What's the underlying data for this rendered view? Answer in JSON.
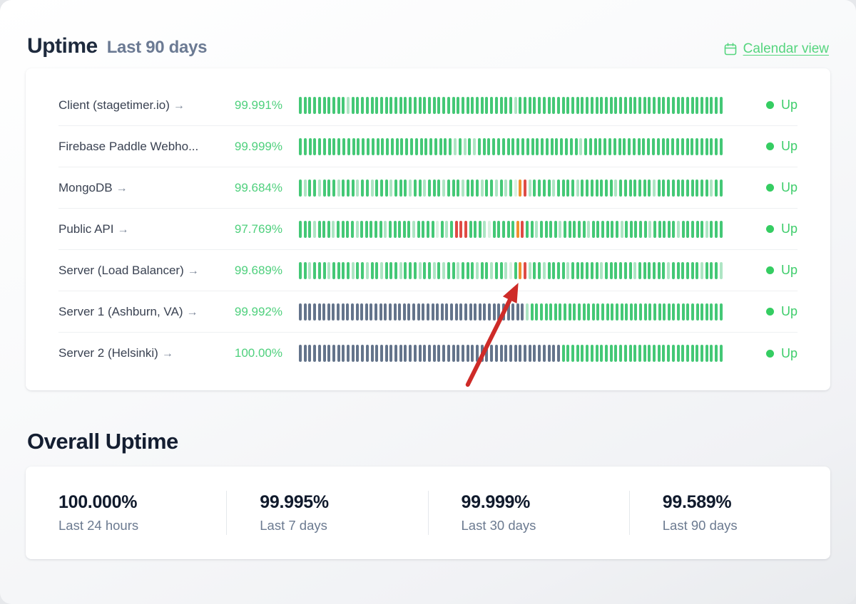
{
  "header": {
    "title": "Uptime",
    "subtitle": "Last 90 days",
    "calendar_link": "Calendar view"
  },
  "bar_colors": {
    "g": "#44c876",
    "l": "#aee5c4",
    "p": "#d9f1e1",
    "o": "#f0922f",
    "r": "#df4b45",
    "s": "#64748b"
  },
  "accent_colors": {
    "pct_green": "#4fd07d",
    "status_green": "#3ecd6b",
    "link_green": "#55d57e",
    "annotation_red": "#ce2b28"
  },
  "monitors": [
    {
      "label": "Client (stagetimer.io)",
      "arrow": "→",
      "uptime": "99.991%",
      "status": "Up",
      "bars": "gggggggggglgggggggggggggggggggggggggggggggggglggggggggggggggggggggggggggggggggggggggggggg"
    },
    {
      "label": "Firebase Paddle Webho...",
      "arrow": "",
      "uptime": "99.999%",
      "status": "Up",
      "bars": "gggggggggggggggggggggggggggggggglglglggggggggggggggggggggglggggggggggggggggggggggggggggg"
    },
    {
      "label": "MongoDB",
      "arrow": "→",
      "uptime": "99.684%",
      "status": "Up",
      "bars": "glgglggglggglgglggglggglgglggglggglggglgglglgporlgggglgggglggggggglggggggglggggggggggglgg"
    },
    {
      "label": "Public API",
      "arrow": "→",
      "uptime": "97.769%",
      "status": "Up",
      "bars": "ggglggglgggglggggglggggglggggpglgrrrggglpgggggorgglgggglggggglgggggglggggglgggggLggggglggg"
    },
    {
      "label": "Server (Load Balancer)",
      "arrow": "→",
      "uptime": "99.689%",
      "status": "Up",
      "bars": "gglggglgggglgglgglggglggglgglglgglggglgglgglpgorlgglgggglgggggglgggggglgggggglgggggglgggl"
    },
    {
      "label": "Server 1 (Ashburn, VA)",
      "arrow": "→",
      "uptime": "99.992%",
      "status": "Up",
      "bars": "sssssssssssssssssssssssssssssssssssssssssssssssslggggggggggggggggggggggggggggggggggggggggg"
    },
    {
      "label": "Server 2 (Helsinki)",
      "arrow": "→",
      "uptime": "100.00%",
      "status": "Up",
      "bars": "sssssssssssssssssssssssssssssssssssssssssssssssssssssssgggggggggggggggggggggggggggggggggg"
    }
  ],
  "overall": {
    "title": "Overall Uptime",
    "stats": [
      {
        "value": "100.000%",
        "label": "Last 24 hours"
      },
      {
        "value": "99.995%",
        "label": "Last 7 days"
      },
      {
        "value": "99.999%",
        "label": "Last 30 days"
      },
      {
        "value": "99.589%",
        "label": "Last 90 days"
      }
    ]
  }
}
